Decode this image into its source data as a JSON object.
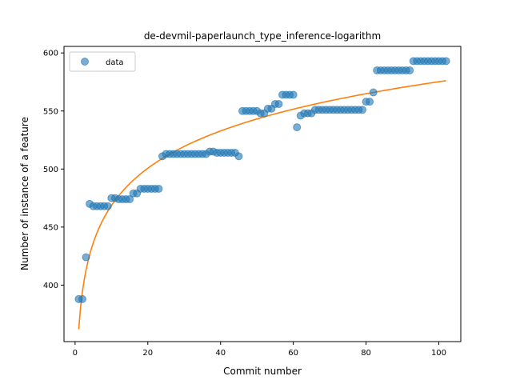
{
  "chart_data": {
    "type": "scatter",
    "title": "de-devmil-paperlaunch_type_inference-logarithm",
    "xlabel": "Commit number",
    "ylabel": "Number of instance of a feature",
    "xlim": [
      -3.05,
      106.05
    ],
    "ylim": [
      351.35,
      605.65
    ],
    "xticks": [
      0,
      20,
      40,
      60,
      80,
      100
    ],
    "yticks": [
      400,
      450,
      500,
      550,
      600
    ],
    "grid": false,
    "legend": {
      "placement": "upper-left",
      "entries": [
        "data"
      ]
    },
    "colors": {
      "points": "#1f77b4",
      "fit": "#ff7f0e"
    },
    "series": [
      {
        "name": "data",
        "kind": "scatter",
        "x": [
          1,
          2,
          3,
          4,
          5,
          6,
          7,
          8,
          9,
          10,
          11,
          12,
          13,
          14,
          15,
          16,
          17,
          18,
          19,
          20,
          21,
          22,
          23,
          24,
          25,
          26,
          27,
          28,
          29,
          30,
          31,
          32,
          33,
          34,
          35,
          36,
          37,
          38,
          39,
          40,
          41,
          42,
          43,
          44,
          45,
          46,
          47,
          48,
          49,
          50,
          51,
          52,
          53,
          54,
          55,
          56,
          57,
          58,
          59,
          60,
          61,
          62,
          63,
          64,
          65,
          66,
          67,
          68,
          69,
          70,
          71,
          72,
          73,
          74,
          75,
          76,
          77,
          78,
          79,
          80,
          81,
          82,
          83,
          84,
          85,
          86,
          87,
          88,
          89,
          90,
          91,
          92,
          93,
          94,
          95,
          96,
          97,
          98,
          99,
          100,
          101,
          102
        ],
        "y": [
          388,
          388,
          424,
          470,
          468,
          468,
          468,
          468,
          468,
          475,
          475,
          474,
          474,
          474,
          474,
          479,
          479,
          483,
          483,
          483,
          483,
          483,
          483,
          511,
          513,
          513,
          513,
          513,
          513,
          513,
          513,
          513,
          513,
          513,
          513,
          513,
          515,
          515,
          514,
          514,
          514,
          514,
          514,
          514,
          511,
          550,
          550,
          550,
          550,
          550,
          548,
          548,
          552,
          552,
          556,
          556,
          564,
          564,
          564,
          564,
          536,
          546,
          548,
          548,
          548,
          551,
          551,
          551,
          551,
          551,
          551,
          551,
          551,
          551,
          551,
          551,
          551,
          551,
          551,
          558,
          558,
          566,
          585,
          585,
          585,
          585,
          585,
          585,
          585,
          585,
          585,
          585,
          593,
          593,
          593,
          593,
          593,
          593,
          593,
          593,
          593,
          593
        ]
      },
      {
        "name": "",
        "kind": "line",
        "fit": {
          "a": 362.0,
          "b": 46.3,
          "model": "a + b*ln(x)"
        },
        "x_range": [
          1,
          102
        ]
      }
    ]
  }
}
